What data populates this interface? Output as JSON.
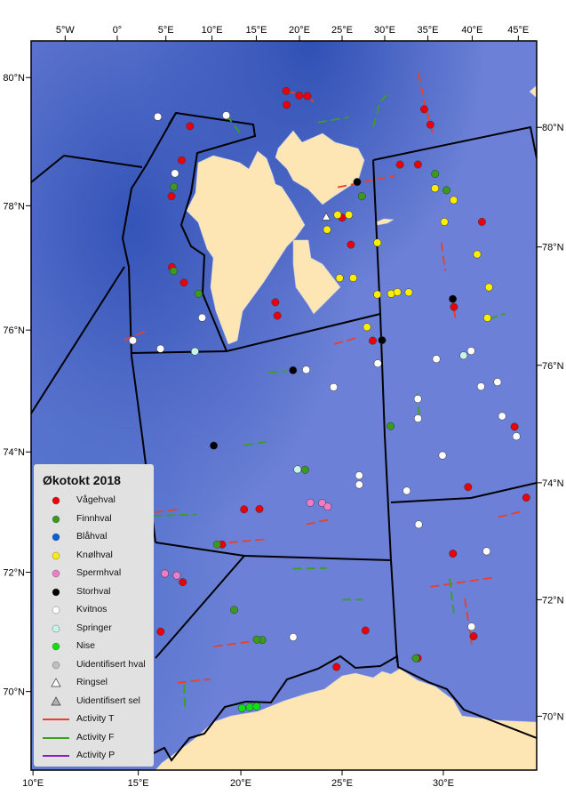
{
  "legend": {
    "title": "Økotokt 2018",
    "items": [
      {
        "key": "vagehval",
        "label": "Vågehval",
        "kind": "dot",
        "color": "#e8000b"
      },
      {
        "key": "finnhval",
        "label": "Finnhval",
        "kind": "dot",
        "color": "#3a9a1e"
      },
      {
        "key": "blahval",
        "label": "Blåhval",
        "kind": "dot",
        "color": "#0b5ed7"
      },
      {
        "key": "knolhval",
        "label": "Knølhval",
        "kind": "dot",
        "color": "#ffee00"
      },
      {
        "key": "spermhval",
        "label": "Spermhval",
        "kind": "dot",
        "color": "#f07cc8"
      },
      {
        "key": "storhval",
        "label": "Storhval",
        "kind": "dot",
        "color": "#000000"
      },
      {
        "key": "kvitnos",
        "label": "Kvitnos",
        "kind": "dot",
        "color": "#ffffff"
      },
      {
        "key": "springer",
        "label": "Springer",
        "kind": "dot",
        "color": "#c8f5ea"
      },
      {
        "key": "nise",
        "label": "Nise",
        "kind": "dot",
        "color": "#10e010"
      },
      {
        "key": "uid_hval",
        "label": "Uidentifisert hval",
        "kind": "dot",
        "color": "#c0c0c0"
      },
      {
        "key": "ringsel",
        "label": "Ringsel",
        "kind": "triangle",
        "color": "#ffffff"
      },
      {
        "key": "uid_sel",
        "label": "Uidentifisert sel",
        "kind": "triangle",
        "color": "#b0b0b0"
      },
      {
        "key": "T",
        "label": "Activity T",
        "kind": "line",
        "color": "#e8402a"
      },
      {
        "key": "F",
        "label": "Activity F",
        "kind": "line",
        "color": "#3aa01e"
      },
      {
        "key": "P",
        "label": "Activity P",
        "kind": "line",
        "color": "#8a1ec8"
      }
    ]
  },
  "axes": {
    "top": [
      {
        "lon": -5,
        "label": "5°W"
      },
      {
        "lon": 0,
        "label": "0°"
      },
      {
        "lon": 5,
        "label": "5°E"
      },
      {
        "lon": 10,
        "label": "10°E"
      },
      {
        "lon": 15,
        "label": "15°E"
      },
      {
        "lon": 20,
        "label": "20°E"
      },
      {
        "lon": 25,
        "label": "25°E"
      },
      {
        "lon": 30,
        "label": "30°E"
      },
      {
        "lon": 35,
        "label": "35°E"
      },
      {
        "lon": 40,
        "label": "40°E"
      },
      {
        "lon": 45,
        "label": "45°E"
      }
    ],
    "bottom": [
      {
        "lon": 10,
        "label": "10°E"
      },
      {
        "lon": 15,
        "label": "15°E"
      },
      {
        "lon": 20,
        "label": "20°E"
      },
      {
        "lon": 25,
        "label": "25°E"
      },
      {
        "lon": 30,
        "label": "30°E"
      }
    ],
    "left": [
      {
        "lat": 80,
        "label": "80°N"
      },
      {
        "lat": 78,
        "label": "78°N"
      },
      {
        "lat": 76,
        "label": "76°N"
      },
      {
        "lat": 74,
        "label": "74°N"
      },
      {
        "lat": 72,
        "label": "72°N"
      },
      {
        "lat": 70,
        "label": "70°N"
      }
    ],
    "right": [
      {
        "lat": 80,
        "label": "80°N"
      },
      {
        "lat": 78,
        "label": "78°N"
      },
      {
        "lat": 76,
        "label": "76°N"
      },
      {
        "lat": 74,
        "label": "74°N"
      },
      {
        "lat": 72,
        "label": "72°N"
      },
      {
        "lat": 70,
        "label": "70°N"
      }
    ]
  },
  "colors": {
    "land": "#fde6b4",
    "sea": "#6a7fd6",
    "deep_sea": "#3c5cc0",
    "boundary": "#000000"
  },
  "tracks": [
    {
      "activity": "T",
      "path": [
        [
          33.4,
          81.38
        ],
        [
          33.6,
          80.9
        ],
        [
          34.0,
          80.31
        ]
      ]
    },
    {
      "activity": "T",
      "path": [
        [
          24.6,
          79.48
        ],
        [
          30.0,
          79.65
        ]
      ]
    },
    {
      "activity": "T",
      "path": [
        [
          9.0,
          76.33
        ],
        [
          10.4,
          76.58
        ]
      ]
    },
    {
      "activity": "T",
      "path": [
        [
          24.4,
          76.75
        ],
        [
          26.0,
          76.85
        ]
      ]
    },
    {
      "activity": "T",
      "path": [
        [
          33.4,
          78.4
        ],
        [
          33.4,
          77.9
        ]
      ]
    },
    {
      "activity": "T",
      "path": [
        [
          33.6,
          77.45
        ],
        [
          33.7,
          77.05
        ]
      ]
    },
    {
      "activity": "T",
      "path": [
        [
          17.4,
          73.14
        ],
        [
          20.3,
          73.3
        ]
      ]
    },
    {
      "activity": "T",
      "path": [
        [
          12.7,
          73.45
        ],
        [
          14.85,
          73.64
        ]
      ]
    },
    {
      "activity": "T",
      "path": [
        [
          34.6,
          73.53
        ],
        [
          36.2,
          73.56
        ]
      ]
    },
    {
      "activity": "T",
      "path": [
        [
          32.0,
          72.2
        ],
        [
          32.1,
          71.4
        ]
      ]
    },
    {
      "activity": "T",
      "path": [
        [
          30.1,
          72.46
        ],
        [
          33.8,
          72.5
        ]
      ]
    },
    {
      "activity": "T",
      "path": [
        [
          18.0,
          71.36
        ],
        [
          20.6,
          71.55
        ]
      ]
    },
    {
      "activity": "T",
      "path": [
        [
          16.3,
          70.65
        ],
        [
          18.0,
          70.79
        ]
      ]
    },
    {
      "activity": "T",
      "path": [
        [
          22.8,
          73.6
        ],
        [
          24.3,
          73.7
        ]
      ]
    },
    {
      "activity": "T",
      "path": [
        [
          19.0,
          81.11
        ],
        [
          21.3,
          81.05
        ],
        [
          22.0,
          80.95
        ]
      ]
    },
    {
      "activity": "F",
      "path": [
        [
          13.2,
          80.55
        ],
        [
          14.85,
          80.28
        ]
      ]
    },
    {
      "activity": "F",
      "path": [
        [
          22.55,
          80.6
        ],
        [
          25.7,
          80.7
        ]
      ]
    },
    {
      "activity": "F",
      "path": [
        [
          28.15,
          80.52
        ],
        [
          29.0,
          80.94
        ],
        [
          29.9,
          81.08
        ]
      ]
    },
    {
      "activity": "F",
      "path": [
        [
          31.25,
          72.58
        ],
        [
          31.3,
          71.97
        ]
      ]
    },
    {
      "activity": "F",
      "path": [
        [
          19.7,
          76.2
        ],
        [
          21.0,
          76.25
        ]
      ]
    },
    {
      "activity": "F",
      "path": [
        [
          18.5,
          74.9
        ],
        [
          20.0,
          75.0
        ]
      ]
    },
    {
      "activity": "F",
      "path": [
        [
          16.65,
          70.64
        ],
        [
          16.9,
          70.18
        ]
      ]
    },
    {
      "activity": "F",
      "path": [
        [
          22.1,
          72.82
        ],
        [
          24.1,
          72.85
        ]
      ]
    },
    {
      "activity": "F",
      "path": [
        [
          25.0,
          72.3
        ],
        [
          26.2,
          72.3
        ]
      ]
    },
    {
      "activity": "F",
      "path": [
        [
          36.2,
          76.95
        ],
        [
          37.5,
          77.0
        ]
      ]
    },
    {
      "activity": "F",
      "path": [
        [
          30.3,
          75.45
        ],
        [
          30.3,
          75.85
        ]
      ]
    },
    {
      "activity": "F",
      "path": [
        [
          12.6,
          73.4
        ],
        [
          16.0,
          73.6
        ]
      ]
    }
  ],
  "sightings": {
    "vagehval": [
      [
        19.0,
        81.11
      ],
      [
        20.45,
        81.05
      ],
      [
        21.3,
        81.05
      ],
      [
        19.2,
        80.87
      ],
      [
        9.9,
        80.22
      ],
      [
        9.9,
        79.61
      ],
      [
        9.8,
        78.96
      ],
      [
        11.2,
        77.76
      ],
      [
        12.4,
        77.54
      ],
      [
        20.0,
        77.2
      ],
      [
        19.76,
        77.43
      ],
      [
        25.0,
        78.95
      ],
      [
        25.75,
        78.48
      ],
      [
        27.3,
        76.8
      ],
      [
        30.5,
        79.83
      ],
      [
        32.2,
        79.8
      ],
      [
        33.5,
        80.74
      ],
      [
        33.9,
        80.46
      ],
      [
        37.1,
        78.64
      ],
      [
        33.7,
        77.26
      ],
      [
        36.6,
        75.03
      ],
      [
        36.5,
        73.78
      ],
      [
        33.0,
        74.12
      ],
      [
        31.6,
        73.0
      ],
      [
        32.25,
        71.53
      ],
      [
        26.3,
        71.76
      ],
      [
        29.1,
        71.24
      ],
      [
        24.7,
        71.13
      ],
      [
        19.85,
        73.82
      ],
      [
        18.9,
        73.79
      ],
      [
        17.8,
        73.14
      ],
      [
        15.8,
        72.4
      ],
      [
        15.0,
        71.49
      ]
    ],
    "finnhval": [
      [
        26.8,
        79.32
      ],
      [
        9.8,
        79.13
      ],
      [
        11.4,
        77.7
      ],
      [
        13.7,
        77.4
      ],
      [
        33.7,
        79.6
      ],
      [
        34.5,
        79.29
      ],
      [
        22.6,
        74.55
      ],
      [
        28.3,
        75.3
      ],
      [
        18.9,
        72.03
      ],
      [
        20.6,
        71.55
      ],
      [
        20.3,
        71.55
      ],
      [
        29.0,
        71.24
      ],
      [
        17.5,
        73.13
      ]
    ],
    "blahval": [],
    "knolhval": [
      [
        25.6,
        79.0
      ],
      [
        24.6,
        79.0
      ],
      [
        23.7,
        78.74
      ],
      [
        28.0,
        78.5
      ],
      [
        25.9,
        77.9
      ],
      [
        24.8,
        77.9
      ],
      [
        28.9,
        77.6
      ],
      [
        30.3,
        77.6
      ],
      [
        33.5,
        79.35
      ],
      [
        35.0,
        79.1
      ],
      [
        33.9,
        78.75
      ],
      [
        36.2,
        78.1
      ],
      [
        36.65,
        77.5
      ],
      [
        36.1,
        76.98
      ],
      [
        26.9,
        77.04
      ],
      [
        27.8,
        77.6
      ],
      [
        29.4,
        77.62
      ]
    ],
    "spermhval": [
      [
        14.7,
        72.5
      ],
      [
        23.0,
        73.98
      ],
      [
        23.75,
        73.98
      ],
      [
        24.1,
        73.92
      ],
      [
        15.4,
        72.5
      ]
    ],
    "storhval": [
      [
        26.4,
        79.57
      ],
      [
        33.7,
        77.4
      ],
      [
        16.5,
        74.83
      ],
      [
        21.45,
        76.27
      ],
      [
        28.0,
        76.8
      ]
    ],
    "kvitnos": [
      [
        6.6,
        80.23
      ],
      [
        13.2,
        80.54
      ],
      [
        9.6,
        79.36
      ],
      [
        14.3,
        77.0
      ],
      [
        9.6,
        76.36
      ],
      [
        11.7,
        76.33
      ],
      [
        22.4,
        76.29
      ],
      [
        24.4,
        76.0
      ],
      [
        27.6,
        76.4
      ],
      [
        31.9,
        76.4
      ],
      [
        34.5,
        76.46
      ],
      [
        36.0,
        75.85
      ],
      [
        34.8,
        75.82
      ],
      [
        30.3,
        75.74
      ],
      [
        31.6,
        74.72
      ],
      [
        35.9,
        75.25
      ],
      [
        36.6,
        74.86
      ],
      [
        30.2,
        75.4
      ],
      [
        26.1,
        74.46
      ],
      [
        26.1,
        74.3
      ],
      [
        29.1,
        74.16
      ],
      [
        29.7,
        73.56
      ],
      [
        33.6,
        72.97
      ],
      [
        22.3,
        71.63
      ],
      [
        32.2,
        71.7
      ]
    ],
    "springer": [
      [
        14.2,
        76.4
      ],
      [
        33.9,
        76.4
      ],
      [
        22.1,
        74.55
      ]
    ],
    "nise": [
      [
        19.8,
        70.34
      ],
      [
        20.2,
        70.37
      ],
      [
        20.55,
        70.39
      ]
    ],
    "uid_hval": [],
    "ringsel": [
      [
        23.6,
        78.96
      ]
    ],
    "uid_sel": []
  }
}
